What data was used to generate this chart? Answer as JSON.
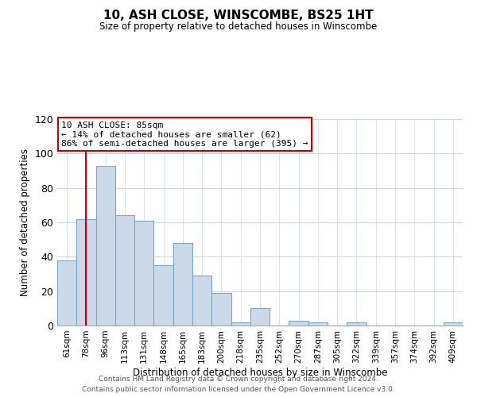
{
  "title": "10, ASH CLOSE, WINSCOMBE, BS25 1HT",
  "subtitle": "Size of property relative to detached houses in Winscombe",
  "xlabel": "Distribution of detached houses by size in Winscombe",
  "ylabel": "Number of detached properties",
  "bar_labels": [
    "61sqm",
    "78sqm",
    "96sqm",
    "113sqm",
    "131sqm",
    "148sqm",
    "165sqm",
    "183sqm",
    "200sqm",
    "218sqm",
    "235sqm",
    "252sqm",
    "270sqm",
    "287sqm",
    "305sqm",
    "322sqm",
    "339sqm",
    "357sqm",
    "374sqm",
    "392sqm",
    "409sqm"
  ],
  "bar_values": [
    38,
    62,
    93,
    64,
    61,
    35,
    48,
    29,
    19,
    2,
    10,
    0,
    3,
    2,
    0,
    2,
    0,
    0,
    0,
    0,
    2
  ],
  "bar_color": "#ccd9e8",
  "bar_edge_color": "#7ba7c8",
  "vline_color": "#cc0000",
  "vline_pos": 1.5,
  "ylim": [
    0,
    120
  ],
  "yticks": [
    0,
    20,
    40,
    60,
    80,
    100,
    120
  ],
  "annotation_line1": "10 ASH CLOSE: 85sqm",
  "annotation_line2": "← 14% of detached houses are smaller (62)",
  "annotation_line3": "86% of semi-detached houses are larger (395) →",
  "annotation_box_color": "#ffffff",
  "annotation_box_edge": "#cc0000",
  "footer_line1": "Contains HM Land Registry data © Crown copyright and database right 2024.",
  "footer_line2": "Contains public sector information licensed under the Open Government Licence v3.0.",
  "bg_color": "#ffffff",
  "grid_color": "#c8d8e8"
}
